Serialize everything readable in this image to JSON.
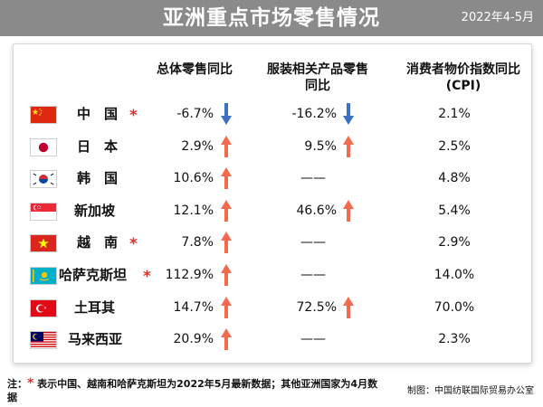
{
  "header": {
    "title": "亚洲重点市场零售情况",
    "period": "2022年4-5月"
  },
  "columns": {
    "total": "总体零售同比",
    "apparel_line1": "服装相关产品零售",
    "apparel_line2": "同比",
    "cpi_line1": "消费者物价指数同比",
    "cpi_line2": "(CPI)"
  },
  "colors": {
    "up": "#f26b4f",
    "down": "#3f6fc4",
    "asterisk": "#e0302c",
    "header_bg": "#8a8a8a"
  },
  "rows": [
    {
      "country": "中　国",
      "flag": "china-flag-icon",
      "asterisk": "*",
      "total": "-6.7%",
      "total_trend": "down",
      "apparel": "-16.2%",
      "apparel_trend": "down",
      "cpi": "2.1%"
    },
    {
      "country": "日　本",
      "flag": "japan-flag-icon",
      "asterisk": "",
      "total": "2.9%",
      "total_trend": "up",
      "apparel": "9.5%",
      "apparel_trend": "up",
      "cpi": "2.5%"
    },
    {
      "country": "韩　国",
      "flag": "south-korea-flag-icon",
      "asterisk": "",
      "total": "10.6%",
      "total_trend": "up",
      "apparel": "——",
      "apparel_trend": "",
      "cpi": "4.8%"
    },
    {
      "country": "新加坡",
      "flag": "singapore-flag-icon",
      "asterisk": "",
      "total": "12.1%",
      "total_trend": "up",
      "apparel": "46.6%",
      "apparel_trend": "up",
      "cpi": "5.4%"
    },
    {
      "country": "越　南",
      "flag": "vietnam-flag-icon",
      "asterisk": "*",
      "total": "7.8%",
      "total_trend": "up",
      "apparel": "——",
      "apparel_trend": "",
      "cpi": "2.9%"
    },
    {
      "country": "哈萨克斯坦",
      "flag": "kazakhstan-flag-icon",
      "asterisk": "*",
      "total": "112.9%",
      "total_trend": "up",
      "apparel": "——",
      "apparel_trend": "",
      "cpi": "14.0%"
    },
    {
      "country": "土耳其",
      "flag": "turkey-flag-icon",
      "asterisk": "",
      "total": "14.7%",
      "total_trend": "up",
      "apparel": "72.5%",
      "apparel_trend": "up",
      "cpi": "70.0%"
    },
    {
      "country": "马来西亚",
      "flag": "malaysia-flag-icon",
      "asterisk": "",
      "total": "20.9%",
      "total_trend": "up",
      "apparel": "——",
      "apparel_trend": "",
      "cpi": "2.3%"
    }
  ],
  "footnote": {
    "prefix": "注：",
    "star": "*",
    "text": " 表示中国、越南和哈萨克斯坦为2022年5月最新数据；其他亚洲国家为4月数据"
  },
  "credit": "制图：中国纺联国际贸易办公室"
}
